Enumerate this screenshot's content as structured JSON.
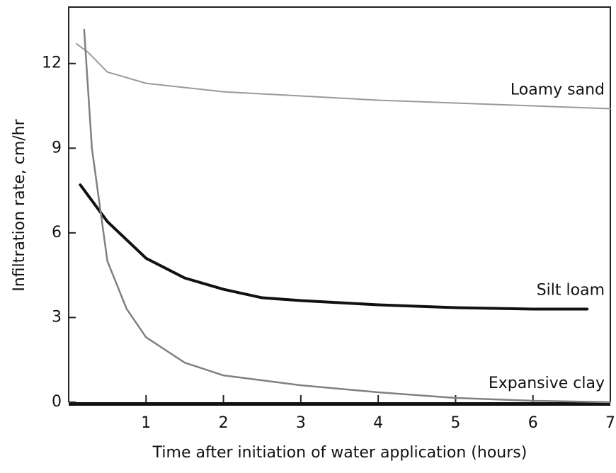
{
  "chart_data": {
    "type": "line",
    "x_label": "Time after initiation of water application (hours)",
    "y_label": "Infiltration rate, cm/hr",
    "xlim": [
      0,
      7
    ],
    "ylim": [
      0,
      14
    ],
    "xticks": [
      1,
      2,
      3,
      4,
      5,
      6,
      7
    ],
    "yticks": [
      0,
      3,
      6,
      9,
      12
    ],
    "series": [
      {
        "name": "Loamy sand",
        "color": "#9a9a9a",
        "width": 2,
        "x": [
          0.1,
          0.25,
          0.5,
          1,
          2,
          3,
          4,
          5,
          6,
          7
        ],
        "values": [
          12.7,
          12.4,
          11.7,
          11.3,
          11.0,
          10.85,
          10.7,
          10.6,
          10.5,
          10.4
        ]
      },
      {
        "name": "Silt loam",
        "color": "#111111",
        "width": 4,
        "x": [
          0.15,
          0.5,
          1,
          1.5,
          2,
          2.5,
          3,
          4,
          5,
          6,
          6.7
        ],
        "values": [
          7.7,
          6.4,
          5.1,
          4.4,
          4.0,
          3.7,
          3.6,
          3.45,
          3.35,
          3.3,
          3.3
        ]
      },
      {
        "name": "Expansive clay",
        "color": "#808080",
        "width": 2.5,
        "x": [
          0.2,
          0.3,
          0.5,
          0.75,
          1,
          1.5,
          2,
          3,
          4,
          5,
          6,
          7
        ],
        "values": [
          13.2,
          9.0,
          5.0,
          3.3,
          2.3,
          1.4,
          0.95,
          0.6,
          0.35,
          0.15,
          0.05,
          0.0
        ]
      }
    ]
  }
}
